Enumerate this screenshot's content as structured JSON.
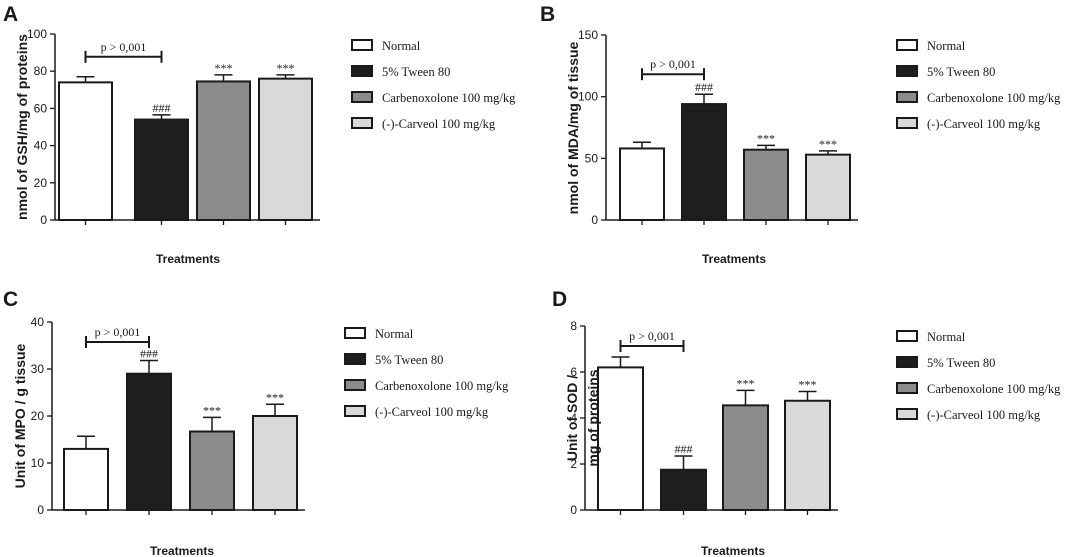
{
  "colors": {
    "normal": "#ffffff",
    "tween": "#1e1e1e",
    "carbenoxolone": "#8c8c8c",
    "carveol": "#d9d9d9",
    "stroke": "#1a1a1a"
  },
  "legend_entries": [
    "Normal",
    "5% Tween 80",
    "Carbenoxolone 100 mg/kg",
    "(-)-Carveol 100 mg/kg"
  ],
  "chart_data": [
    {
      "panel": "A",
      "type": "bar",
      "title": "",
      "xlabel": "Treatments",
      "ylabel": "nmol of GSH/mg of proteins",
      "ylim": [
        0,
        100
      ],
      "yticks": [
        0,
        20,
        40,
        60,
        80,
        100
      ],
      "categories": [
        "Normal",
        "5% Tween 80",
        "Carbenoxolone 100 mg/kg",
        "(-)-Carveol 100 mg/kg"
      ],
      "values": [
        74,
        54,
        74.5,
        76
      ],
      "errors": [
        3,
        2.5,
        3.5,
        2
      ],
      "significance": [
        "",
        "###",
        "***",
        "***"
      ],
      "comparison": {
        "from": 0,
        "to": 1,
        "label": "p > 0,001"
      }
    },
    {
      "panel": "B",
      "type": "bar",
      "title": "",
      "xlabel": "Treatments",
      "ylabel": "nmol of MDA/mg of tissue",
      "ylim": [
        0,
        150
      ],
      "yticks": [
        0,
        50,
        100,
        150
      ],
      "categories": [
        "Normal",
        "5% Tween 80",
        "Carbenoxolone 100 mg/kg",
        "(-)-Carveol 100 mg/kg"
      ],
      "values": [
        58,
        94,
        57,
        53
      ],
      "errors": [
        5,
        8,
        3.5,
        3
      ],
      "significance": [
        "",
        "###",
        "***",
        "***"
      ],
      "comparison": {
        "from": 0,
        "to": 1,
        "label": "p > 0,001"
      }
    },
    {
      "panel": "C",
      "type": "bar",
      "title": "",
      "xlabel": "Treatments",
      "ylabel": "Unit of MPO / g tissue",
      "ylim": [
        0,
        40
      ],
      "yticks": [
        0,
        10,
        20,
        30,
        40
      ],
      "categories": [
        "Normal",
        "5% Tween 80",
        "Carbenoxolone 100 mg/kg",
        "(-)-Carveol 100 mg/kg"
      ],
      "values": [
        13,
        29,
        16.7,
        20
      ],
      "errors": [
        2.7,
        2.8,
        3,
        2.5
      ],
      "significance": [
        "",
        "###",
        "***",
        "***"
      ],
      "comparison": {
        "from": 0,
        "to": 1,
        "label": "p > 0,001"
      }
    },
    {
      "panel": "D",
      "type": "bar",
      "title": "",
      "xlabel": "Treatments",
      "ylabel": "Unit of SOD /",
      "ylabel2": "mg of proteins",
      "ylim": [
        0,
        8
      ],
      "yticks": [
        0,
        2,
        4,
        6,
        8
      ],
      "categories": [
        "Normal",
        "5% Tween 80",
        "Carbenoxolone 100 mg/kg",
        "(-)-Carveol 100 mg/kg"
      ],
      "values": [
        6.2,
        1.75,
        4.55,
        4.75
      ],
      "errors": [
        0.45,
        0.6,
        0.65,
        0.4
      ],
      "significance": [
        "",
        "###",
        "***",
        "***"
      ],
      "comparison": {
        "from": 0,
        "to": 1,
        "label": "p > 0,001"
      }
    }
  ]
}
